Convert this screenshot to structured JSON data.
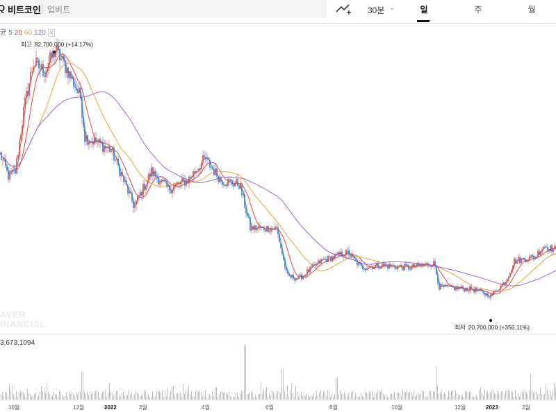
{
  "header": {
    "coin_name": "비트코인",
    "exchange": "업비트",
    "interval": "30분",
    "tabs": [
      "일",
      "주",
      "월"
    ],
    "active_tab": "일"
  },
  "legend": {
    "prefix": "균",
    "items": [
      {
        "label": "5",
        "color": "#26a69a"
      },
      {
        "label": "20",
        "color": "#e8453c"
      },
      {
        "label": "60",
        "color": "#f0a030"
      },
      {
        "label": "120",
        "color": "#a064d6"
      }
    ],
    "settings_icon": "close-icon"
  },
  "watermark": [
    "AVER",
    "INANCIAL"
  ],
  "volume_label": "3,673.1094",
  "colors": {
    "up": "#e8453c",
    "down": "#3c78d8",
    "ma5": "#26a69a",
    "ma20": "#e8453c",
    "ma60": "#f0a030",
    "ma120": "#a064d6"
  },
  "chart_data": {
    "type": "candlestick",
    "unit": "KRW",
    "x_ticks": [
      "10월",
      "12월",
      "2022",
      "2월",
      "4월",
      "6월",
      "8월",
      "10월",
      "12월",
      "2023",
      "2월"
    ],
    "annotations": [
      {
        "label": "최고",
        "value": "82,700,000 (+14.17%)"
      },
      {
        "label": "최저",
        "value": "20,700,000 (+356.11%)"
      }
    ],
    "high": 82700000,
    "low": 20700000,
    "ylim": [
      16000000,
      86000000
    ],
    "price_anchors": [
      {
        "x": 0,
        "y": 57000000
      },
      {
        "x": 12,
        "y": 52000000
      },
      {
        "x": 22,
        "y": 53000000
      },
      {
        "x": 35,
        "y": 68000000
      },
      {
        "x": 48,
        "y": 78000000
      },
      {
        "x": 64,
        "y": 76000000
      },
      {
        "x": 80,
        "y": 81000000
      },
      {
        "x": 98,
        "y": 76000000
      },
      {
        "x": 116,
        "y": 70000000
      },
      {
        "x": 122,
        "y": 61000000
      },
      {
        "x": 160,
        "y": 58000000
      },
      {
        "x": 193,
        "y": 45000000
      },
      {
        "x": 218,
        "y": 53000000
      },
      {
        "x": 242,
        "y": 49000000
      },
      {
        "x": 270,
        "y": 51000000
      },
      {
        "x": 295,
        "y": 56000000
      },
      {
        "x": 318,
        "y": 51000000
      },
      {
        "x": 345,
        "y": 50000000
      },
      {
        "x": 360,
        "y": 40000000
      },
      {
        "x": 398,
        "y": 40000000
      },
      {
        "x": 413,
        "y": 29000000
      },
      {
        "x": 430,
        "y": 28500000
      },
      {
        "x": 462,
        "y": 32500000
      },
      {
        "x": 500,
        "y": 34500000
      },
      {
        "x": 520,
        "y": 31000000
      },
      {
        "x": 545,
        "y": 31500000
      },
      {
        "x": 590,
        "y": 31000000
      },
      {
        "x": 625,
        "y": 32000000
      },
      {
        "x": 632,
        "y": 26500000
      },
      {
        "x": 680,
        "y": 26000000
      },
      {
        "x": 706,
        "y": 24500000
      },
      {
        "x": 728,
        "y": 28000000
      },
      {
        "x": 740,
        "y": 32500000
      },
      {
        "x": 770,
        "y": 33500000
      },
      {
        "x": 782,
        "y": 36000000
      },
      {
        "x": 800,
        "y": 35000000
      }
    ],
    "volume_spikes": [
      {
        "x": 352,
        "v": 1.0
      },
      {
        "x": 627,
        "v": 0.62
      },
      {
        "x": 406,
        "v": 0.55
      },
      {
        "x": 118,
        "v": 0.52
      },
      {
        "x": 763,
        "v": 0.48
      },
      {
        "x": 484,
        "v": 0.4
      }
    ]
  }
}
